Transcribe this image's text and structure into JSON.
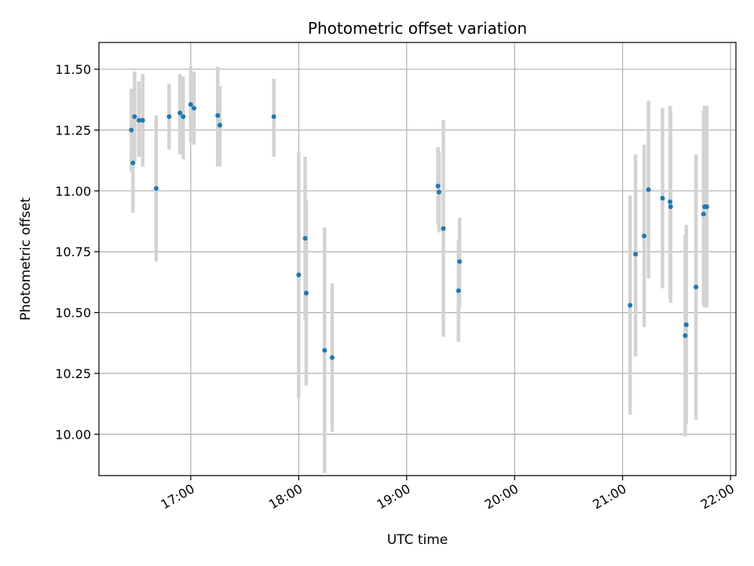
{
  "chart_data": {
    "type": "scatter",
    "title": "Photometric offset variation",
    "xlabel": "UTC time",
    "ylabel": "Photometric offset",
    "x_unit": "UTC hours",
    "xlim": [
      16.15,
      22.05
    ],
    "ylim": [
      9.83,
      11.61
    ],
    "x_ticks": [
      {
        "value": 17,
        "label": "17:00"
      },
      {
        "value": 18,
        "label": "18:00"
      },
      {
        "value": 19,
        "label": "19:00"
      },
      {
        "value": 20,
        "label": "20:00"
      },
      {
        "value": 21,
        "label": "21:00"
      },
      {
        "value": 22,
        "label": "22:00"
      }
    ],
    "y_ticks": [
      {
        "value": 10.0,
        "label": "10.00"
      },
      {
        "value": 10.25,
        "label": "10.25"
      },
      {
        "value": 10.5,
        "label": "10.50"
      },
      {
        "value": 10.75,
        "label": "10.75"
      },
      {
        "value": 11.0,
        "label": "11.00"
      },
      {
        "value": 11.25,
        "label": "11.25"
      },
      {
        "value": 11.5,
        "label": "11.50"
      }
    ],
    "grid": true,
    "legend": "none",
    "colors": {
      "marker": "#1f77b4",
      "errorbar": "#d3d3d3",
      "grid": "#b0b0b0"
    },
    "points": [
      {
        "x": 16.45,
        "y": 11.25,
        "ylo": 11.08,
        "yhi": 11.42
      },
      {
        "x": 16.465,
        "y": 11.115,
        "ylo": 10.91,
        "yhi": 11.3
      },
      {
        "x": 16.48,
        "y": 11.305,
        "ylo": 11.12,
        "yhi": 11.49
      },
      {
        "x": 16.52,
        "y": 11.29,
        "ylo": 11.14,
        "yhi": 11.45
      },
      {
        "x": 16.555,
        "y": 11.29,
        "ylo": 11.1,
        "yhi": 11.48
      },
      {
        "x": 16.68,
        "y": 11.01,
        "ylo": 10.71,
        "yhi": 11.31
      },
      {
        "x": 16.8,
        "y": 11.305,
        "ylo": 11.17,
        "yhi": 11.44
      },
      {
        "x": 16.9,
        "y": 11.32,
        "ylo": 11.15,
        "yhi": 11.48
      },
      {
        "x": 16.93,
        "y": 11.305,
        "ylo": 11.13,
        "yhi": 11.47
      },
      {
        "x": 17.0,
        "y": 11.355,
        "ylo": 11.2,
        "yhi": 11.51
      },
      {
        "x": 17.03,
        "y": 11.34,
        "ylo": 11.19,
        "yhi": 11.49
      },
      {
        "x": 17.25,
        "y": 11.31,
        "ylo": 11.1,
        "yhi": 11.51
      },
      {
        "x": 17.27,
        "y": 11.27,
        "ylo": 11.1,
        "yhi": 11.43
      },
      {
        "x": 17.77,
        "y": 11.305,
        "ylo": 11.14,
        "yhi": 11.46
      },
      {
        "x": 18.0,
        "y": 10.655,
        "ylo": 10.15,
        "yhi": 11.16
      },
      {
        "x": 18.06,
        "y": 10.805,
        "ylo": 10.47,
        "yhi": 11.14
      },
      {
        "x": 18.07,
        "y": 10.58,
        "ylo": 10.2,
        "yhi": 10.96
      },
      {
        "x": 18.24,
        "y": 10.345,
        "ylo": 9.84,
        "yhi": 10.85
      },
      {
        "x": 18.31,
        "y": 10.315,
        "ylo": 10.01,
        "yhi": 10.62
      },
      {
        "x": 19.29,
        "y": 11.02,
        "ylo": 10.86,
        "yhi": 11.18
      },
      {
        "x": 19.3,
        "y": 10.995,
        "ylo": 10.83,
        "yhi": 11.16
      },
      {
        "x": 19.34,
        "y": 10.845,
        "ylo": 10.4,
        "yhi": 11.29
      },
      {
        "x": 19.48,
        "y": 10.59,
        "ylo": 10.38,
        "yhi": 10.8
      },
      {
        "x": 19.49,
        "y": 10.71,
        "ylo": 10.52,
        "yhi": 10.89
      },
      {
        "x": 21.07,
        "y": 10.53,
        "ylo": 10.08,
        "yhi": 10.98
      },
      {
        "x": 21.12,
        "y": 10.74,
        "ylo": 10.32,
        "yhi": 11.15
      },
      {
        "x": 21.2,
        "y": 10.815,
        "ylo": 10.44,
        "yhi": 11.19
      },
      {
        "x": 21.24,
        "y": 11.005,
        "ylo": 10.64,
        "yhi": 11.37
      },
      {
        "x": 21.37,
        "y": 10.97,
        "ylo": 10.6,
        "yhi": 11.34
      },
      {
        "x": 21.44,
        "y": 10.955,
        "ylo": 10.56,
        "yhi": 11.35
      },
      {
        "x": 21.445,
        "y": 10.935,
        "ylo": 10.54,
        "yhi": 11.33
      },
      {
        "x": 21.58,
        "y": 10.405,
        "ylo": 9.99,
        "yhi": 10.82
      },
      {
        "x": 21.59,
        "y": 10.45,
        "ylo": 10.04,
        "yhi": 10.86
      },
      {
        "x": 21.68,
        "y": 10.605,
        "ylo": 10.06,
        "yhi": 11.15
      },
      {
        "x": 21.75,
        "y": 10.905,
        "ylo": 10.53,
        "yhi": 11.33
      },
      {
        "x": 21.76,
        "y": 10.935,
        "ylo": 10.52,
        "yhi": 11.35
      },
      {
        "x": 21.78,
        "y": 10.935,
        "ylo": 10.52,
        "yhi": 11.35
      }
    ]
  }
}
